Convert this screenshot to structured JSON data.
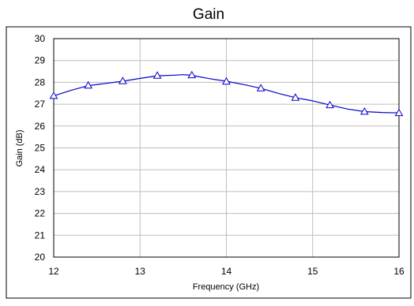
{
  "chart_data": {
    "type": "line",
    "title": "Gain",
    "xlabel": "Frequency (GHz)",
    "ylabel": "Gain (dB)",
    "xlim": [
      12,
      16
    ],
    "ylim": [
      20,
      30
    ],
    "x_ticks": [
      "12",
      "13",
      "14",
      "15",
      "16"
    ],
    "y_ticks": [
      "20",
      "21",
      "22",
      "23",
      "24",
      "25",
      "26",
      "27",
      "28",
      "29",
      "30"
    ],
    "grid": true,
    "legend": "none",
    "line_color": "#0000cc",
    "marker": "triangle-open",
    "series": [
      {
        "curve": [
          [
            12.0,
            27.38
          ],
          [
            12.2,
            27.63
          ],
          [
            12.4,
            27.85
          ],
          [
            12.6,
            27.95
          ],
          [
            12.8,
            28.05
          ],
          [
            13.0,
            28.18
          ],
          [
            13.2,
            28.3
          ],
          [
            13.4,
            28.33
          ],
          [
            13.5,
            28.35
          ],
          [
            13.6,
            28.32
          ],
          [
            13.8,
            28.17
          ],
          [
            14.0,
            28.05
          ],
          [
            14.2,
            27.9
          ],
          [
            14.4,
            27.73
          ],
          [
            14.6,
            27.5
          ],
          [
            14.8,
            27.3
          ],
          [
            15.0,
            27.15
          ],
          [
            15.2,
            26.96
          ],
          [
            15.4,
            26.78
          ],
          [
            15.6,
            26.66
          ],
          [
            15.8,
            26.62
          ],
          [
            16.0,
            26.6
          ]
        ],
        "markers": [
          [
            12.0,
            27.38
          ],
          [
            12.4,
            27.86
          ],
          [
            12.8,
            28.06
          ],
          [
            13.2,
            28.31
          ],
          [
            13.6,
            28.33
          ],
          [
            14.0,
            28.04
          ],
          [
            14.4,
            27.73
          ],
          [
            14.8,
            27.3
          ],
          [
            15.2,
            26.96
          ],
          [
            15.6,
            26.66
          ],
          [
            16.0,
            26.6
          ]
        ]
      }
    ]
  }
}
